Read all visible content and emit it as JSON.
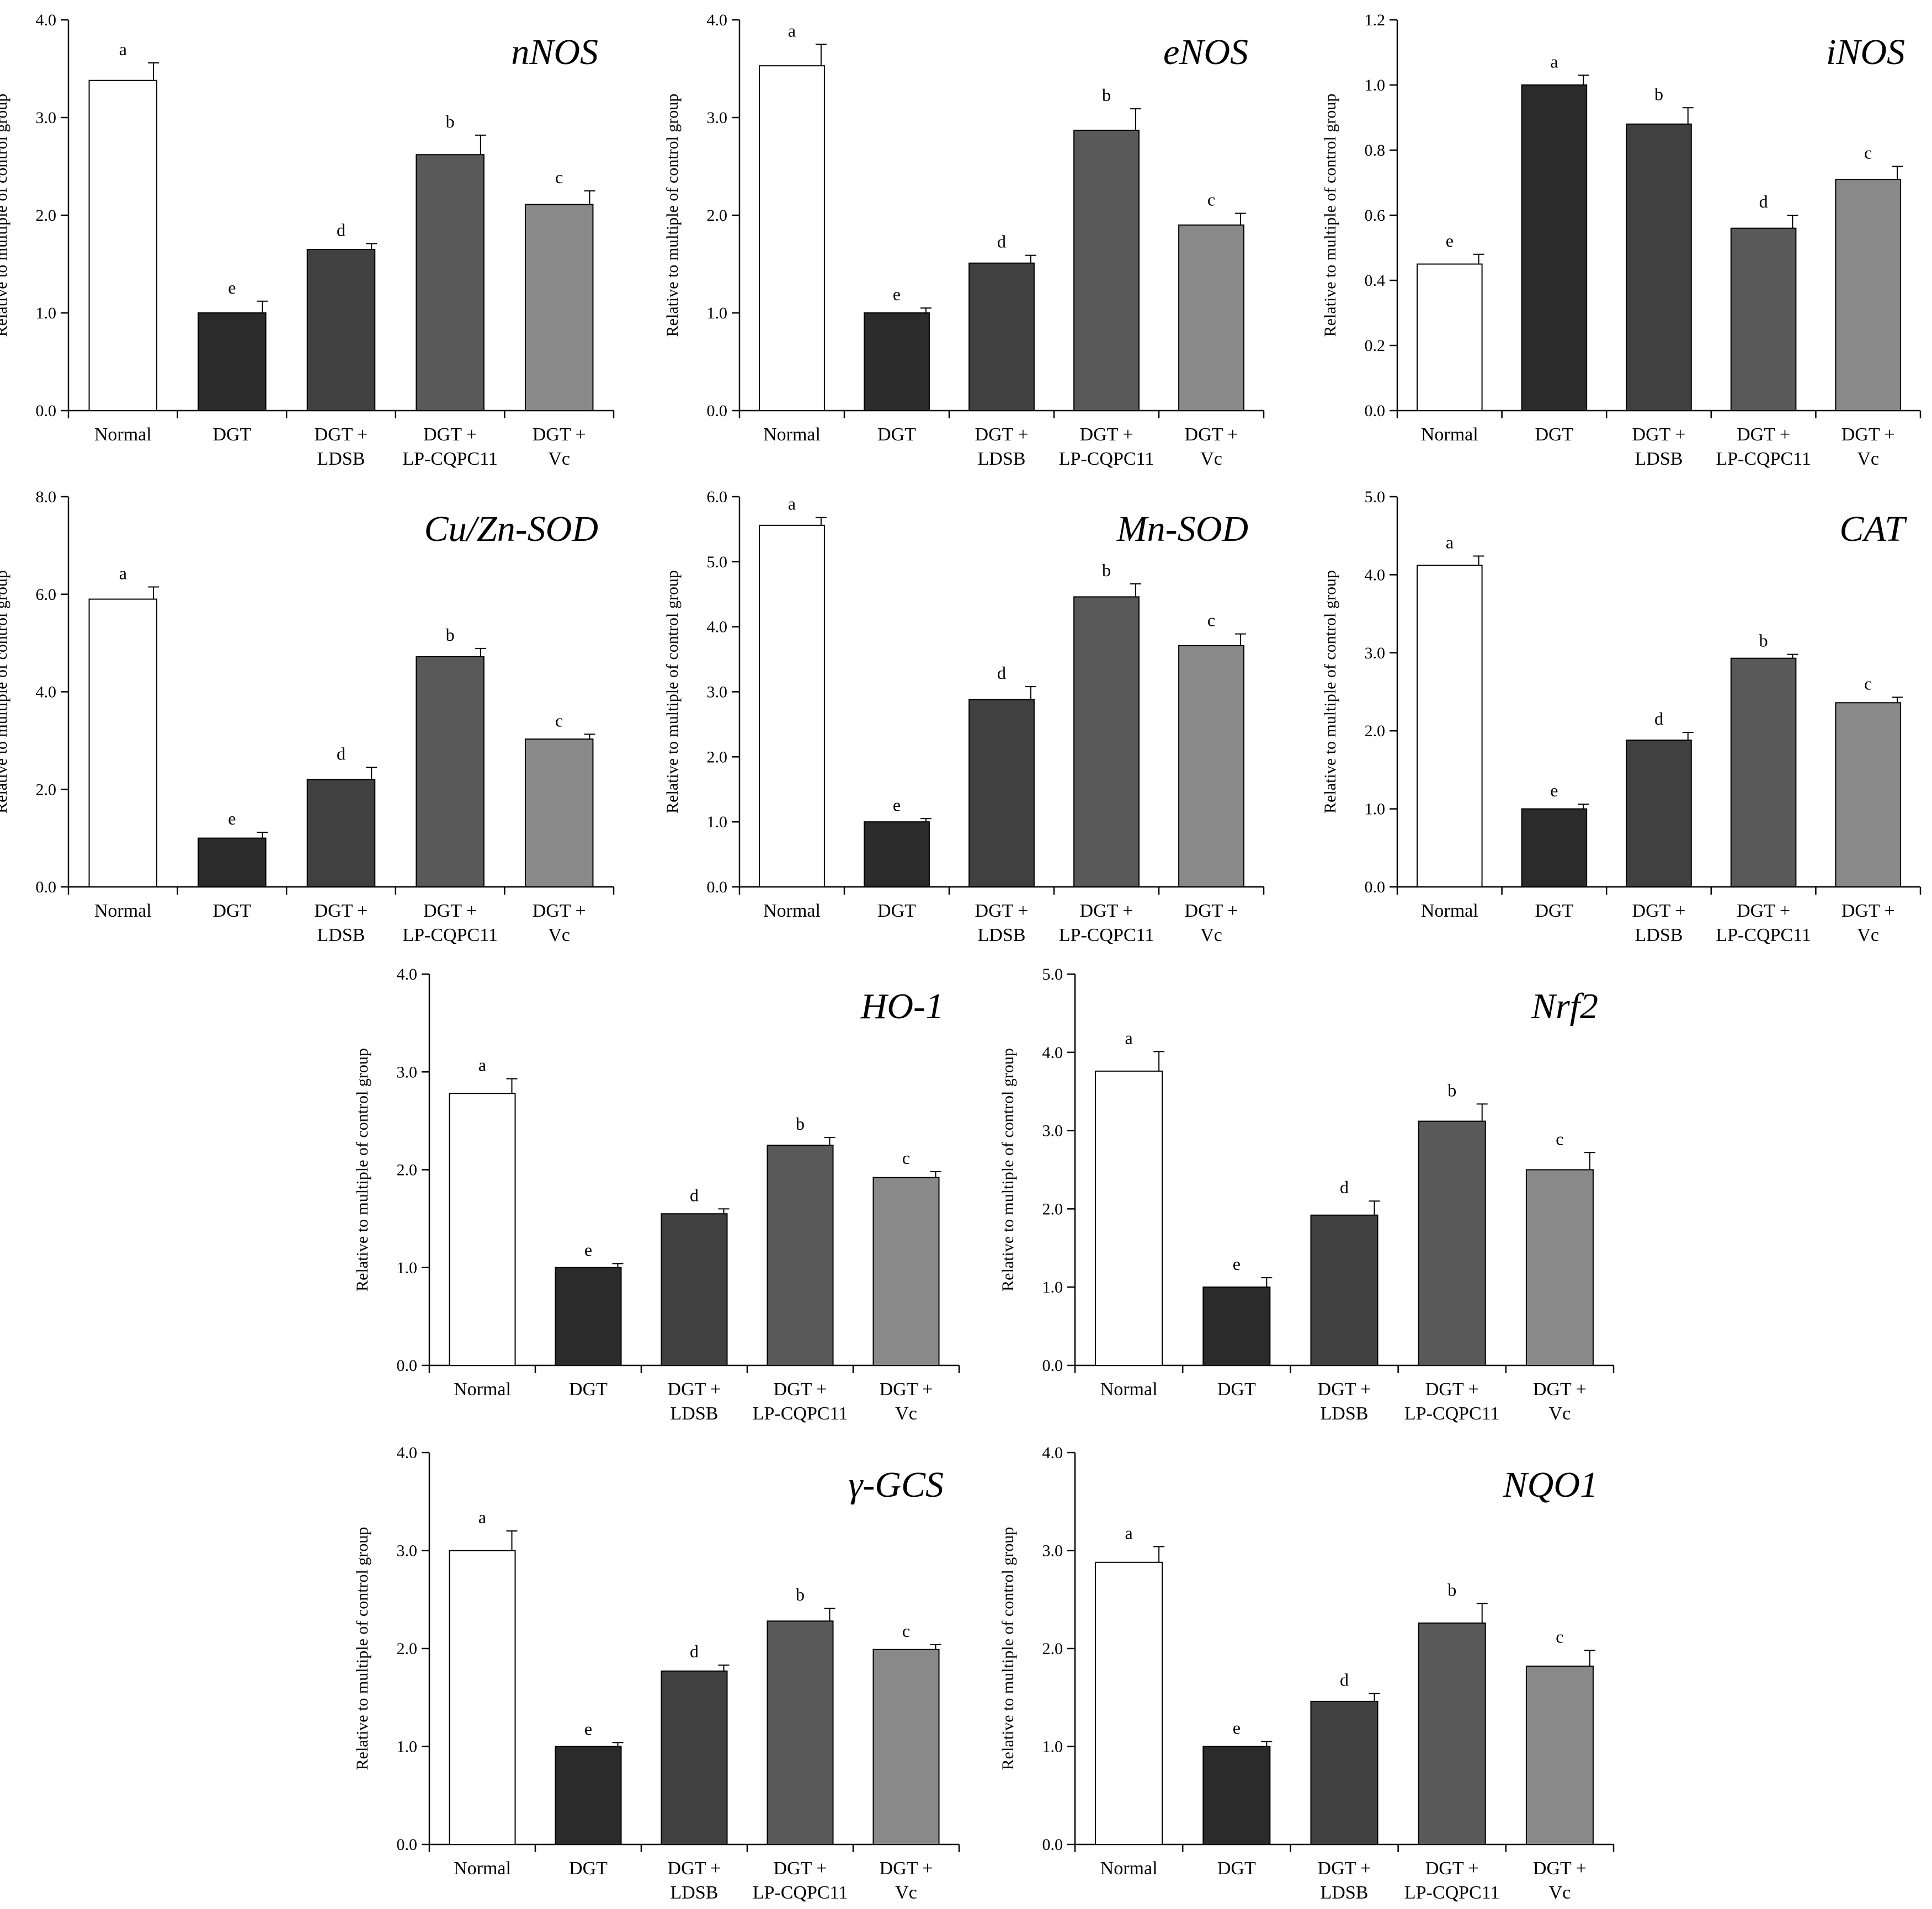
{
  "figure": {
    "categories": [
      [
        "Normal"
      ],
      [
        "DGT"
      ],
      [
        "DGT +",
        "LDSB"
      ],
      [
        "DGT +",
        "LP-CQPC11"
      ],
      [
        "DGT +",
        "Vc"
      ]
    ],
    "ylabel": "Relative to multiple of  control group",
    "bar_colors": [
      "#ffffff",
      "#2b2b2b",
      "#404040",
      "#595959",
      "#898989"
    ]
  },
  "chart_data": [
    {
      "type": "bar",
      "title": "nNOS",
      "ylabel": "Relative to multiple of  control group",
      "categories": [
        "Normal",
        "DGT",
        "DGT + LDSB",
        "DGT + LP-CQPC11",
        "DGT + Vc"
      ],
      "values": [
        3.38,
        1.0,
        1.65,
        2.62,
        2.11
      ],
      "errors": [
        0.18,
        0.12,
        0.06,
        0.2,
        0.14
      ],
      "labels": [
        "a",
        "e",
        "d",
        "b",
        "c"
      ],
      "ylim": [
        0,
        4
      ],
      "yticks": [
        "0.0",
        "1.0",
        "2.0",
        "3.0",
        "4.0"
      ]
    },
    {
      "type": "bar",
      "title": "eNOS",
      "ylabel": "Relative to multiple of  control group",
      "categories": [
        "Normal",
        "DGT",
        "DGT + LDSB",
        "DGT + LP-CQPC11",
        "DGT + Vc"
      ],
      "values": [
        3.53,
        1.0,
        1.51,
        2.87,
        1.9
      ],
      "errors": [
        0.22,
        0.05,
        0.08,
        0.22,
        0.12
      ],
      "labels": [
        "a",
        "e",
        "d",
        "b",
        "c"
      ],
      "ylim": [
        0,
        4
      ],
      "yticks": [
        "0.0",
        "1.0",
        "2.0",
        "3.0",
        "4.0"
      ]
    },
    {
      "type": "bar",
      "title": "iNOS",
      "ylabel": "Relative to multiple of  control group",
      "categories": [
        "Normal",
        "DGT",
        "DGT + LDSB",
        "DGT + LP-CQPC11",
        "DGT + Vc"
      ],
      "values": [
        0.45,
        1.0,
        0.88,
        0.56,
        0.71
      ],
      "errors": [
        0.03,
        0.03,
        0.05,
        0.04,
        0.04
      ],
      "labels": [
        "e",
        "a",
        "b",
        "d",
        "c"
      ],
      "ylim": [
        0,
        1.2
      ],
      "yticks": [
        "0.0",
        "0.2",
        "0.4",
        "0.6",
        "0.8",
        "1.0",
        "1.2"
      ]
    },
    {
      "type": "bar",
      "title": "Cu/Zn-SOD",
      "ylabel": "Relative to multiple of  control group",
      "categories": [
        "Normal",
        "DGT",
        "DGT + LDSB",
        "DGT + LP-CQPC11",
        "DGT + Vc"
      ],
      "values": [
        5.9,
        1.0,
        2.2,
        4.72,
        3.03
      ],
      "errors": [
        0.25,
        0.12,
        0.25,
        0.17,
        0.1
      ],
      "labels": [
        "a",
        "e",
        "d",
        "b",
        "c"
      ],
      "ylim": [
        0,
        8
      ],
      "yticks": [
        "0.0",
        "2.0",
        "4.0",
        "6.0",
        "8.0"
      ]
    },
    {
      "type": "bar",
      "title": "Mn-SOD",
      "ylabel": "Relative to multiple of  control group",
      "categories": [
        "Normal",
        "DGT",
        "DGT + LDSB",
        "DGT + LP-CQPC11",
        "DGT + Vc"
      ],
      "values": [
        5.56,
        1.0,
        2.88,
        4.46,
        3.71
      ],
      "errors": [
        0.12,
        0.05,
        0.2,
        0.2,
        0.18
      ],
      "labels": [
        "a",
        "e",
        "d",
        "b",
        "c"
      ],
      "ylim": [
        0,
        6
      ],
      "yticks": [
        "0.0",
        "1.0",
        "2.0",
        "3.0",
        "4.0",
        "5.0",
        "6.0"
      ]
    },
    {
      "type": "bar",
      "title": "CAT",
      "ylabel": "Relative to multiple of  control group",
      "categories": [
        "Normal",
        "DGT",
        "DGT + LDSB",
        "DGT + LP-CQPC11",
        "DGT + Vc"
      ],
      "values": [
        4.12,
        1.0,
        1.88,
        2.93,
        2.36
      ],
      "errors": [
        0.12,
        0.06,
        0.1,
        0.05,
        0.07
      ],
      "labels": [
        "a",
        "e",
        "d",
        "b",
        "c"
      ],
      "ylim": [
        0,
        5
      ],
      "yticks": [
        "0.0",
        "1.0",
        "2.0",
        "3.0",
        "4.0",
        "5.0"
      ]
    },
    {
      "type": "bar",
      "title": "HO-1",
      "ylabel": "Relative to multiple of  control group",
      "categories": [
        "Normal",
        "DGT",
        "DGT + LDSB",
        "DGT + LP-CQPC11",
        "DGT + Vc"
      ],
      "values": [
        2.78,
        1.0,
        1.55,
        2.25,
        1.92
      ],
      "errors": [
        0.15,
        0.04,
        0.05,
        0.08,
        0.06
      ],
      "labels": [
        "a",
        "e",
        "d",
        "b",
        "c"
      ],
      "ylim": [
        0,
        4
      ],
      "yticks": [
        "0.0",
        "1.0",
        "2.0",
        "3.0",
        "4.0"
      ]
    },
    {
      "type": "bar",
      "title": "Nrf2",
      "ylabel": "Relative to multiple of  control group",
      "categories": [
        "Normal",
        "DGT",
        "DGT + LDSB",
        "DGT + LP-CQPC11",
        "DGT + Vc"
      ],
      "values": [
        3.76,
        1.0,
        1.92,
        3.12,
        2.5
      ],
      "errors": [
        0.25,
        0.12,
        0.18,
        0.22,
        0.22
      ],
      "labels": [
        "a",
        "e",
        "d",
        "b",
        "c"
      ],
      "ylim": [
        0,
        5
      ],
      "yticks": [
        "0.0",
        "1.0",
        "2.0",
        "3.0",
        "4.0",
        "5.0"
      ]
    },
    {
      "type": "bar",
      "title": "γ-GCS",
      "ylabel": "Relative to multiple of  control group",
      "categories": [
        "Normal",
        "DGT",
        "DGT + LDSB",
        "DGT + LP-CQPC11",
        "DGT + Vc"
      ],
      "values": [
        3.0,
        1.0,
        1.77,
        2.28,
        1.99
      ],
      "errors": [
        0.2,
        0.04,
        0.06,
        0.13,
        0.05
      ],
      "labels": [
        "a",
        "e",
        "d",
        "b",
        "c"
      ],
      "ylim": [
        0,
        4
      ],
      "yticks": [
        "0.0",
        "1.0",
        "2.0",
        "3.0",
        "4.0"
      ]
    },
    {
      "type": "bar",
      "title": "NQO1",
      "ylabel": "Relative to multiple of  control group",
      "categories": [
        "Normal",
        "DGT",
        "DGT + LDSB",
        "DGT + LP-CQPC11",
        "DGT + Vc"
      ],
      "values": [
        2.88,
        1.0,
        1.46,
        2.26,
        1.82
      ],
      "errors": [
        0.16,
        0.05,
        0.08,
        0.2,
        0.16
      ],
      "labels": [
        "a",
        "e",
        "d",
        "b",
        "c"
      ],
      "ylim": [
        0,
        4
      ],
      "yticks": [
        "0.0",
        "1.0",
        "2.0",
        "3.0",
        "4.0"
      ]
    }
  ]
}
